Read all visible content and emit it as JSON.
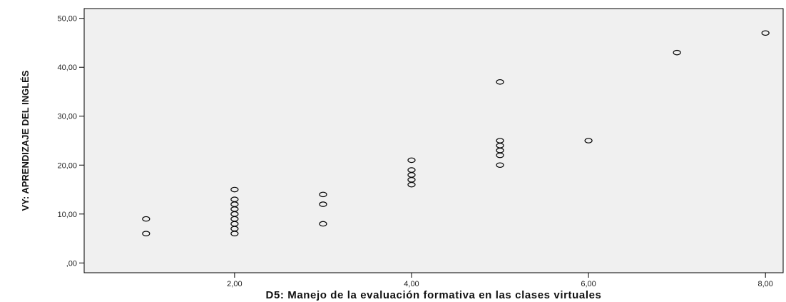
{
  "chart_data": {
    "type": "scatter",
    "xlabel": "D5: Manejo de la evaluación formativa en las clases virtuales",
    "ylabel": "VY: APRENDIZAJE DEL INGLÉS",
    "xlim": [
      0.3,
      8.2
    ],
    "ylim": [
      -2,
      52
    ],
    "x_ticks": [
      2,
      4,
      6,
      8
    ],
    "x_tick_labels": [
      "2,00",
      "4,00",
      "6,00",
      "8,00"
    ],
    "y_ticks": [
      0,
      10,
      20,
      30,
      40,
      50
    ],
    "y_tick_labels": [
      ",00",
      "10,00",
      "20,00",
      "30,00",
      "40,00",
      "50,00"
    ],
    "grid": false,
    "background": "#f0f0f0",
    "marker": "open-circle",
    "marker_color": "#000000",
    "points": [
      {
        "x": 1,
        "y": 6
      },
      {
        "x": 1,
        "y": 9
      },
      {
        "x": 2,
        "y": 6
      },
      {
        "x": 2,
        "y": 7
      },
      {
        "x": 2,
        "y": 8
      },
      {
        "x": 2,
        "y": 9
      },
      {
        "x": 2,
        "y": 10
      },
      {
        "x": 2,
        "y": 11
      },
      {
        "x": 2,
        "y": 12
      },
      {
        "x": 2,
        "y": 13
      },
      {
        "x": 2,
        "y": 15
      },
      {
        "x": 3,
        "y": 8
      },
      {
        "x": 3,
        "y": 12
      },
      {
        "x": 3,
        "y": 14
      },
      {
        "x": 4,
        "y": 16
      },
      {
        "x": 4,
        "y": 17
      },
      {
        "x": 4,
        "y": 18
      },
      {
        "x": 4,
        "y": 19
      },
      {
        "x": 4,
        "y": 21
      },
      {
        "x": 5,
        "y": 20
      },
      {
        "x": 5,
        "y": 22
      },
      {
        "x": 5,
        "y": 23
      },
      {
        "x": 5,
        "y": 24
      },
      {
        "x": 5,
        "y": 25
      },
      {
        "x": 5,
        "y": 37
      },
      {
        "x": 6,
        "y": 25
      },
      {
        "x": 7,
        "y": 43
      },
      {
        "x": 8,
        "y": 47
      }
    ]
  }
}
